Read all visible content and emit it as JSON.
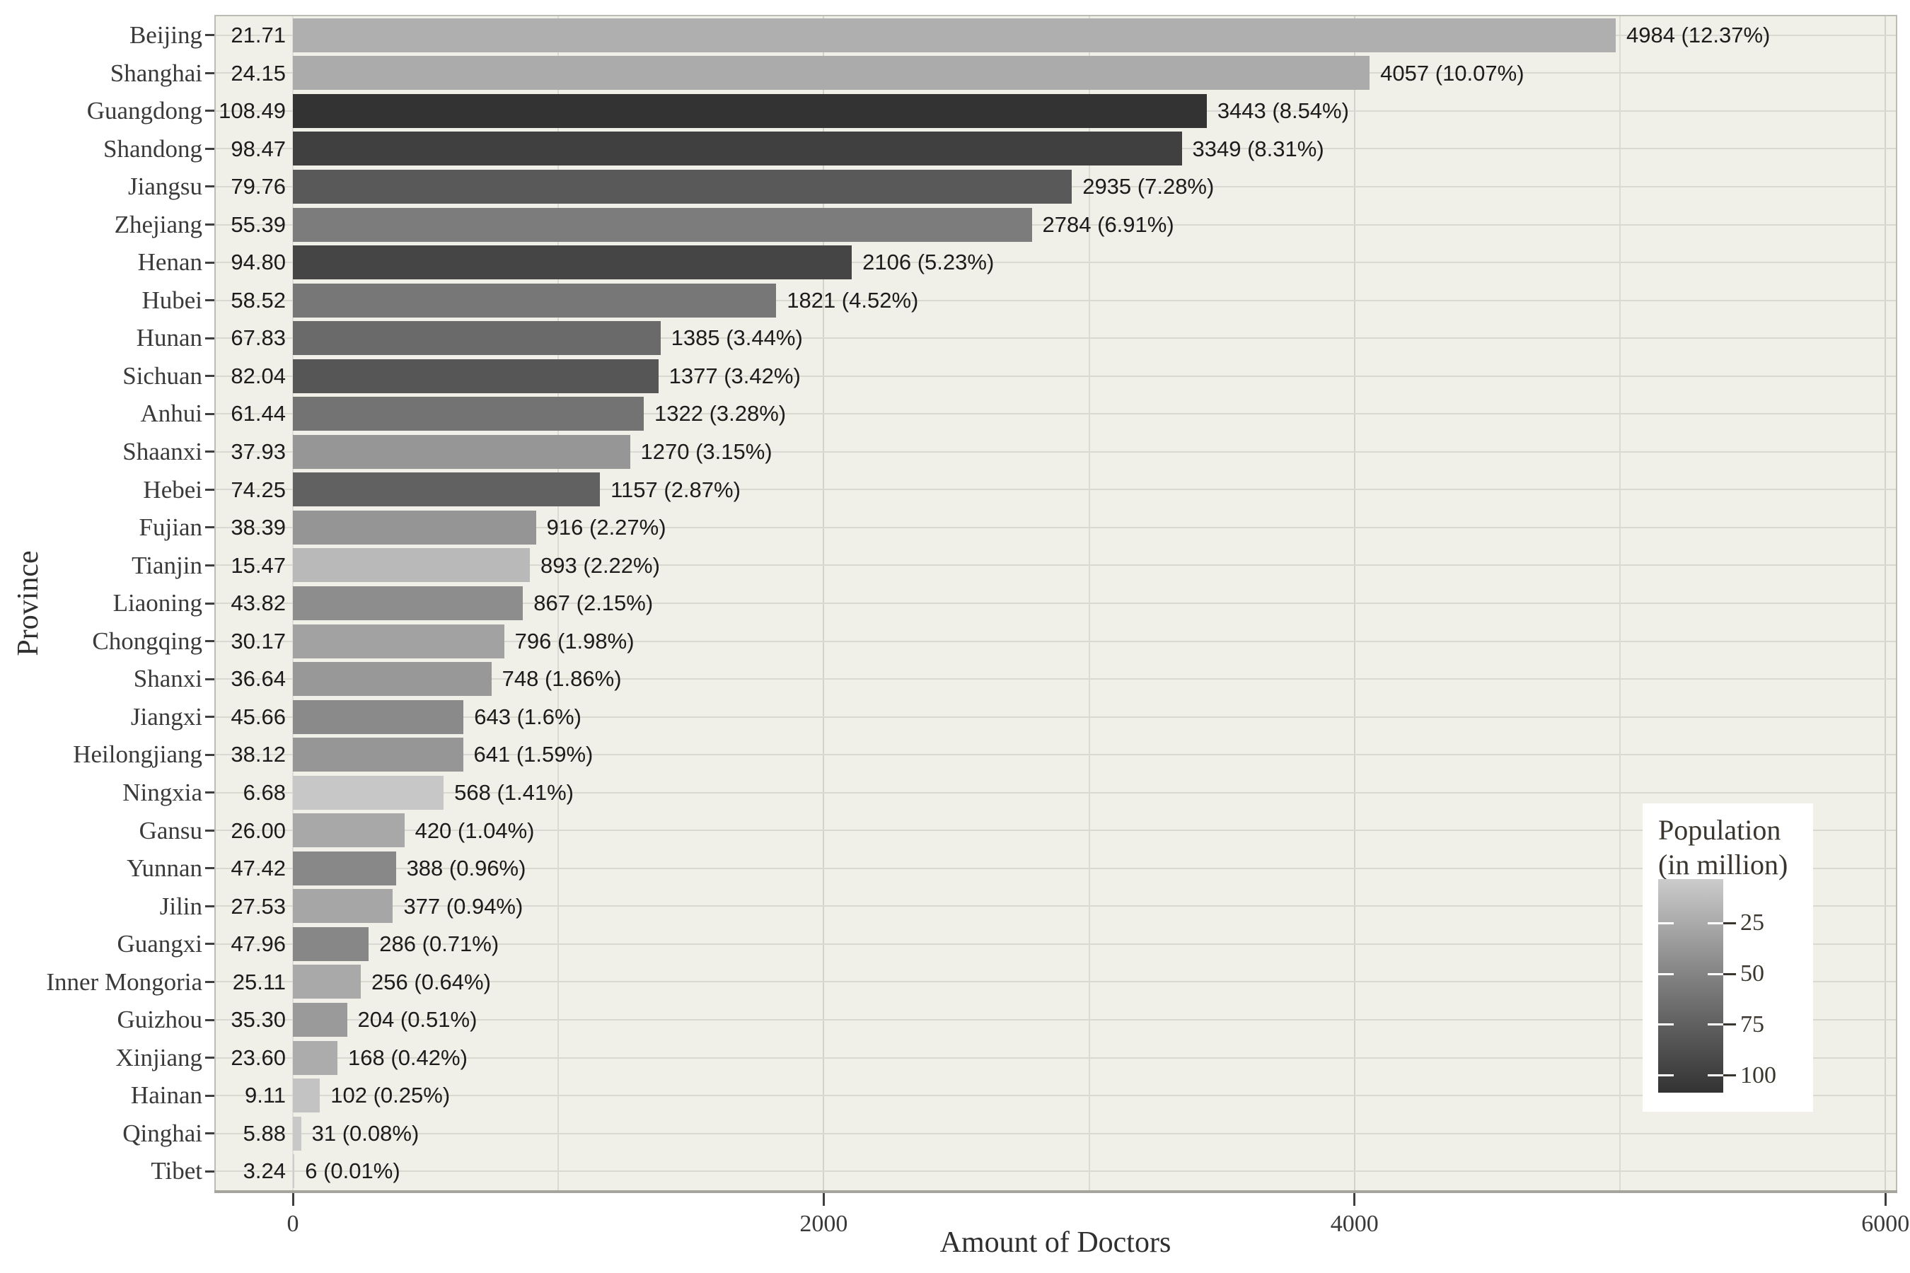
{
  "axes": {
    "x_title": "Amount of Doctors",
    "y_title": "Province",
    "x_tick_labels": [
      "0",
      "2000",
      "4000",
      "6000"
    ],
    "x_tick_values": [
      0,
      2000,
      4000,
      6000
    ],
    "x_minor_tick_values": [
      1000,
      3000,
      5000
    ]
  },
  "legend": {
    "title_lines": [
      "Population",
      "(in million)"
    ],
    "ticks": [
      {
        "label": "25",
        "value": 25
      },
      {
        "label": "50",
        "value": 50
      },
      {
        "label": "75",
        "value": 75
      },
      {
        "label": "100",
        "value": 100
      }
    ]
  },
  "colors": {
    "background": "#FFFFFF",
    "panel_background": "#F0EFE8",
    "grid_major": "#D4D3CB",
    "grid_minor": "#DCDBD3",
    "grid_zero": "#E0DFD7",
    "grid_horizontal": "#DAD9D1",
    "panel_border": "#BDBCB4",
    "axis_line": "#A5A49D",
    "tick_mark": "#3F3F3F",
    "axis_text": "#3A3A3A",
    "label_text": "#1C1C1C",
    "legend_background": "#FFFFFF",
    "bar_low": "#CCCCCC",
    "bar_high": "#333333"
  },
  "chart_data": {
    "type": "bar",
    "orientation": "horizontal",
    "title": "",
    "xlabel": "Amount of Doctors",
    "ylabel": "Province",
    "xlim": [
      0,
      6000
    ],
    "x_gridlines_major": [
      2000,
      4000,
      6000
    ],
    "x_gridlines_minor": [
      1000,
      3000,
      5000
    ],
    "legend_title": "Population (in million)",
    "color_scale": {
      "low": "#CCCCCC",
      "high": "#333333",
      "domain": [
        3.24,
        108.49
      ],
      "interpolation": "lab"
    },
    "rows": [
      {
        "province": "Beijing",
        "population": 21.71,
        "population_label": "21.71",
        "doctors": 4984,
        "doctors_label": "4984 (12.37%)"
      },
      {
        "province": "Shanghai",
        "population": 24.15,
        "population_label": "24.15",
        "doctors": 4057,
        "doctors_label": "4057 (10.07%)"
      },
      {
        "province": "Guangdong",
        "population": 108.49,
        "population_label": "108.49",
        "doctors": 3443,
        "doctors_label": "3443 (8.54%)"
      },
      {
        "province": "Shandong",
        "population": 98.47,
        "population_label": "98.47",
        "doctors": 3349,
        "doctors_label": "3349 (8.31%)"
      },
      {
        "province": "Jiangsu",
        "population": 79.76,
        "population_label": "79.76",
        "doctors": 2935,
        "doctors_label": "2935 (7.28%)"
      },
      {
        "province": "Zhejiang",
        "population": 55.39,
        "population_label": "55.39",
        "doctors": 2784,
        "doctors_label": "2784 (6.91%)"
      },
      {
        "province": "Henan",
        "population": 94.8,
        "population_label": "94.80",
        "doctors": 2106,
        "doctors_label": "2106 (5.23%)"
      },
      {
        "province": "Hubei",
        "population": 58.52,
        "population_label": "58.52",
        "doctors": 1821,
        "doctors_label": "1821 (4.52%)"
      },
      {
        "province": "Hunan",
        "population": 67.83,
        "population_label": "67.83",
        "doctors": 1385,
        "doctors_label": "1385 (3.44%)"
      },
      {
        "province": "Sichuan",
        "population": 82.04,
        "population_label": "82.04",
        "doctors": 1377,
        "doctors_label": "1377 (3.42%)"
      },
      {
        "province": "Anhui",
        "population": 61.44,
        "population_label": "61.44",
        "doctors": 1322,
        "doctors_label": "1322 (3.28%)"
      },
      {
        "province": "Shaanxi",
        "population": 37.93,
        "population_label": "37.93",
        "doctors": 1270,
        "doctors_label": "1270 (3.15%)"
      },
      {
        "province": "Hebei",
        "population": 74.25,
        "population_label": "74.25",
        "doctors": 1157,
        "doctors_label": "1157 (2.87%)"
      },
      {
        "province": "Fujian",
        "population": 38.39,
        "population_label": "38.39",
        "doctors": 916,
        "doctors_label": "916 (2.27%)"
      },
      {
        "province": "Tianjin",
        "population": 15.47,
        "population_label": "15.47",
        "doctors": 893,
        "doctors_label": "893 (2.22%)"
      },
      {
        "province": "Liaoning",
        "population": 43.82,
        "population_label": "43.82",
        "doctors": 867,
        "doctors_label": "867 (2.15%)"
      },
      {
        "province": "Chongqing",
        "population": 30.17,
        "population_label": "30.17",
        "doctors": 796,
        "doctors_label": "796 (1.98%)"
      },
      {
        "province": "Shanxi",
        "population": 36.64,
        "population_label": "36.64",
        "doctors": 748,
        "doctors_label": "748 (1.86%)"
      },
      {
        "province": "Jiangxi",
        "population": 45.66,
        "population_label": "45.66",
        "doctors": 643,
        "doctors_label": "643 (1.6%)"
      },
      {
        "province": "Heilongjiang",
        "population": 38.12,
        "population_label": "38.12",
        "doctors": 641,
        "doctors_label": "641 (1.59%)"
      },
      {
        "province": "Ningxia",
        "population": 6.68,
        "population_label": "6.68",
        "doctors": 568,
        "doctors_label": "568 (1.41%)"
      },
      {
        "province": "Gansu",
        "population": 26.0,
        "population_label": "26.00",
        "doctors": 420,
        "doctors_label": "420 (1.04%)"
      },
      {
        "province": "Yunnan",
        "population": 47.42,
        "population_label": "47.42",
        "doctors": 388,
        "doctors_label": "388 (0.96%)"
      },
      {
        "province": "Jilin",
        "population": 27.53,
        "population_label": "27.53",
        "doctors": 377,
        "doctors_label": "377 (0.94%)"
      },
      {
        "province": "Guangxi",
        "population": 47.96,
        "population_label": "47.96",
        "doctors": 286,
        "doctors_label": "286 (0.71%)"
      },
      {
        "province": "Inner Mongoria",
        "population": 25.11,
        "population_label": "25.11",
        "doctors": 256,
        "doctors_label": "256 (0.64%)"
      },
      {
        "province": "Guizhou",
        "population": 35.3,
        "population_label": "35.30",
        "doctors": 204,
        "doctors_label": "204 (0.51%)"
      },
      {
        "province": "Xinjiang",
        "population": 23.6,
        "population_label": "23.60",
        "doctors": 168,
        "doctors_label": "168 (0.42%)"
      },
      {
        "province": "Hainan",
        "population": 9.11,
        "population_label": "9.11",
        "doctors": 102,
        "doctors_label": "102 (0.25%)"
      },
      {
        "province": "Qinghai",
        "population": 5.88,
        "population_label": "5.88",
        "doctors": 31,
        "doctors_label": "31 (0.08%)"
      },
      {
        "province": "Tibet",
        "population": 3.24,
        "population_label": "3.24",
        "doctors": 6,
        "doctors_label": "6 (0.01%)"
      }
    ]
  }
}
